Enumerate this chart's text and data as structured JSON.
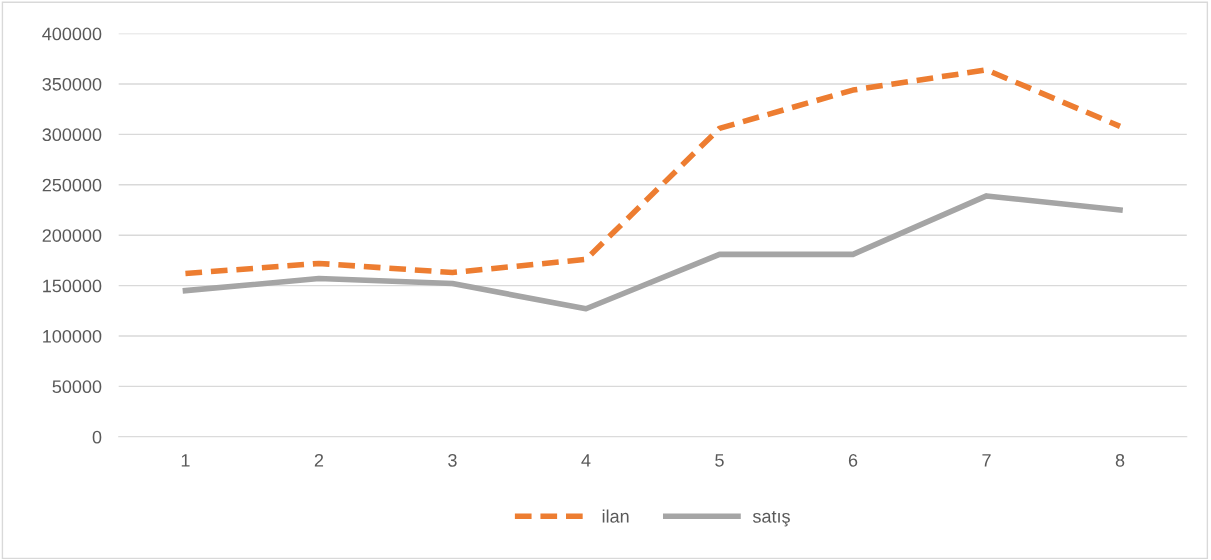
{
  "chart_data": {
    "type": "line",
    "categories": [
      "1",
      "2",
      "3",
      "4",
      "5",
      "6",
      "7",
      "8"
    ],
    "series": [
      {
        "name": "ilan",
        "color": "#ed7d31",
        "line_style": "dashed",
        "values": [
          162000,
          172000,
          163000,
          176000,
          306000,
          344000,
          364000,
          308000
        ]
      },
      {
        "name": "satış",
        "color": "#a5a5a5",
        "line_style": "solid",
        "values": [
          145000,
          157000,
          152000,
          127000,
          181000,
          181000,
          239000,
          225000
        ]
      }
    ],
    "ylim": [
      0,
      400000
    ],
    "yticks": [
      0,
      50000,
      100000,
      150000,
      200000,
      250000,
      300000,
      350000,
      400000
    ],
    "grid": "y",
    "legend": "bottom",
    "marker": "none"
  }
}
